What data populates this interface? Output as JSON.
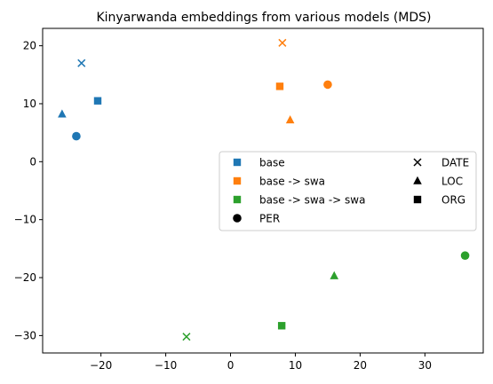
{
  "chart_data": {
    "type": "scatter",
    "title": "Kinyarwanda embeddings from various models (MDS)",
    "xlabel": "",
    "ylabel": "",
    "xlim": [
      -29,
      39
    ],
    "ylim": [
      -33,
      23
    ],
    "xticks": [
      -20,
      -10,
      0,
      10,
      20,
      30
    ],
    "yticks": [
      -30,
      -20,
      -10,
      0,
      10,
      20
    ],
    "xtick_labels": [
      "−20",
      "−10",
      "0",
      "10",
      "20",
      "30"
    ],
    "ytick_labels": [
      "−30",
      "−20",
      "−10",
      "0",
      "10",
      "20"
    ],
    "grid": false,
    "legend_placement": "center-right",
    "series": [
      {
        "name": "base",
        "color": "#1f77b4",
        "points": [
          {
            "x": -23,
            "y": 17,
            "entity": "DATE"
          },
          {
            "x": -20.5,
            "y": 10.5,
            "entity": "ORG"
          },
          {
            "x": -26,
            "y": 8.2,
            "entity": "LOC"
          },
          {
            "x": -23.8,
            "y": 4.4,
            "entity": "PER"
          }
        ]
      },
      {
        "name": "base -> swa",
        "color": "#ff7f0e",
        "points": [
          {
            "x": 8,
            "y": 20.5,
            "entity": "DATE"
          },
          {
            "x": 7.6,
            "y": 13,
            "entity": "ORG"
          },
          {
            "x": 15,
            "y": 13.3,
            "entity": "PER"
          },
          {
            "x": 9.2,
            "y": 7.2,
            "entity": "LOC"
          }
        ]
      },
      {
        "name": "base -> swa -> swa",
        "color": "#2ca02c",
        "points": [
          {
            "x": 36.2,
            "y": -16.2,
            "entity": "PER"
          },
          {
            "x": 16,
            "y": -19.7,
            "entity": "LOC"
          },
          {
            "x": 7.9,
            "y": -28.3,
            "entity": "ORG"
          },
          {
            "x": -6.8,
            "y": -30.2,
            "entity": "DATE"
          }
        ]
      }
    ],
    "legend": {
      "models": [
        {
          "label": "base",
          "color": "#1f77b4"
        },
        {
          "label": "base -> swa",
          "color": "#ff7f0e"
        },
        {
          "label": "base -> swa -> swa",
          "color": "#2ca02c"
        }
      ],
      "entities": [
        {
          "label": "PER",
          "marker": "circle"
        },
        {
          "label": "DATE",
          "marker": "x"
        },
        {
          "label": "LOC",
          "marker": "triangle"
        },
        {
          "label": "ORG",
          "marker": "square"
        }
      ]
    }
  }
}
